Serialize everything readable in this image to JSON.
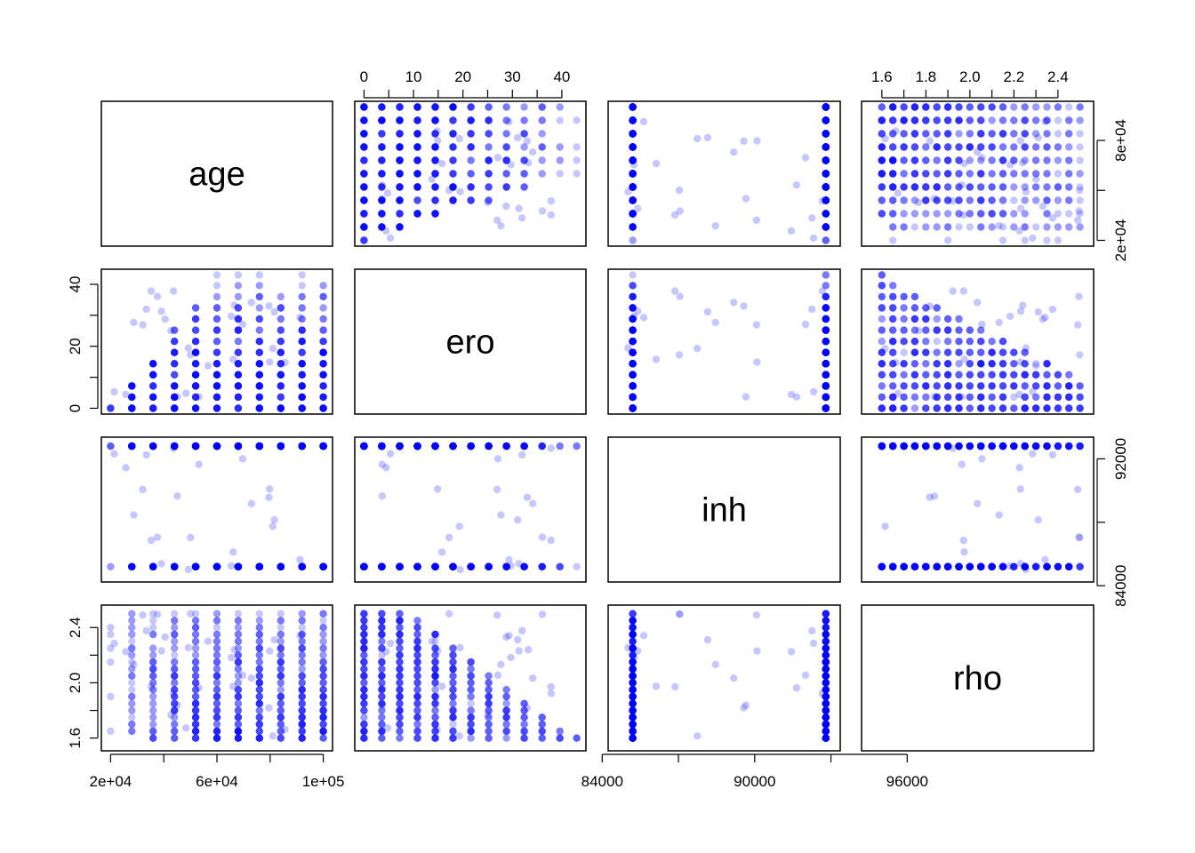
{
  "chart_data": {
    "type": "scatter-matrix",
    "variables": [
      "age",
      "ero",
      "inh",
      "rho"
    ],
    "point_color": "#0000ff",
    "point_alpha_note": "semi-transparent points; overlapping grid points appear darker",
    "ranges": {
      "age": [
        20000,
        100000
      ],
      "ero": [
        0,
        43
      ],
      "inh": [
        84600,
        93000
      ],
      "rho": [
        1.55,
        2.52
      ]
    },
    "axes": {
      "top": {
        "ero": {
          "ticks": [
            0,
            10,
            20,
            30,
            40
          ],
          "labels": [
            "0",
            "10",
            "20",
            "30",
            "40"
          ]
        },
        "rho": {
          "ticks": [
            1.6,
            1.8,
            2.0,
            2.2,
            2.4
          ],
          "labels": [
            "1.6",
            "1.8",
            "2.0",
            "2.2",
            "2.4"
          ]
        }
      },
      "bottom": {
        "age": {
          "ticks": [
            20000,
            60000,
            100000
          ],
          "labels": [
            "2e+04",
            "6e+04",
            "1e+05"
          ]
        },
        "inh": {
          "ticks": [
            84000,
            90000,
            96000
          ],
          "labels": [
            "84000",
            "90000",
            "96000"
          ]
        }
      },
      "left": {
        "ero": {
          "ticks": [
            0,
            20,
            40
          ],
          "labels": [
            "0",
            "20",
            "40"
          ]
        },
        "rho": {
          "ticks": [
            1.6,
            2.0,
            2.4
          ],
          "labels": [
            "1.6",
            "2.0",
            "2.4"
          ]
        }
      },
      "right": {
        "age": {
          "ticks": [
            20000,
            80000
          ],
          "labels": [
            "2e+04",
            "8e+04"
          ]
        },
        "inh": {
          "ticks": [
            84000,
            92000
          ],
          "labels": [
            "84000",
            "92000"
          ]
        }
      }
    },
    "grid_levels": {
      "age": [
        20000,
        28000,
        36000,
        44000,
        52000,
        60000,
        68000,
        76000,
        84000,
        92000,
        100000
      ],
      "ero": [
        0,
        3.6,
        7.2,
        10.8,
        14.4,
        18,
        21.6,
        25.2,
        28.8,
        32.4,
        36,
        39.6,
        43
      ],
      "inh": [
        85200,
        92800
      ],
      "rho": [
        1.6,
        1.65,
        1.7,
        1.75,
        1.8,
        1.85,
        1.9,
        1.95,
        2.0,
        2.05,
        2.1,
        2.15,
        2.2,
        2.25,
        2.3,
        2.35,
        2.4,
        2.45,
        2.5
      ]
    },
    "ero_max_by_rho": "ero <= 43 - 36 * (rho - 1.6)",
    "ero_max_by_age": "ero <= 43 * (age - 20000) / 40000 for age below 60000"
  }
}
